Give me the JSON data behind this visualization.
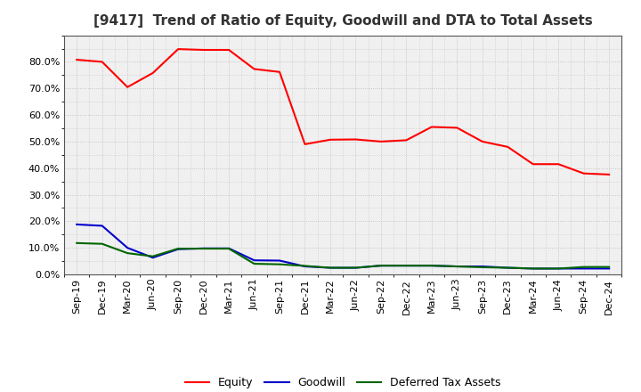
{
  "title": "[9417]  Trend of Ratio of Equity, Goodwill and DTA to Total Assets",
  "x_labels": [
    "Sep-19",
    "Dec-19",
    "Mar-20",
    "Jun-20",
    "Sep-20",
    "Dec-20",
    "Mar-21",
    "Jun-21",
    "Sep-21",
    "Dec-21",
    "Mar-22",
    "Jun-22",
    "Sep-22",
    "Dec-22",
    "Mar-23",
    "Jun-23",
    "Sep-23",
    "Dec-23",
    "Mar-24",
    "Jun-24",
    "Sep-24",
    "Dec-24"
  ],
  "equity": [
    0.808,
    0.8,
    0.705,
    0.758,
    0.848,
    0.845,
    0.845,
    0.773,
    0.762,
    0.49,
    0.507,
    0.508,
    0.5,
    0.505,
    0.555,
    0.552,
    0.5,
    0.48,
    0.415,
    0.415,
    0.38,
    0.376
  ],
  "goodwill": [
    0.188,
    0.183,
    0.1,
    0.063,
    0.095,
    0.098,
    0.098,
    0.053,
    0.052,
    0.03,
    0.025,
    0.025,
    0.033,
    0.033,
    0.033,
    0.03,
    0.03,
    0.025,
    0.022,
    0.022,
    0.022,
    0.022
  ],
  "dta": [
    0.118,
    0.115,
    0.08,
    0.068,
    0.097,
    0.097,
    0.097,
    0.04,
    0.038,
    0.032,
    0.025,
    0.025,
    0.033,
    0.033,
    0.033,
    0.03,
    0.027,
    0.025,
    0.022,
    0.022,
    0.028,
    0.028
  ],
  "equity_color": "#FF0000",
  "goodwill_color": "#0000CC",
  "dta_color": "#006600",
  "ylim": [
    0.0,
    0.9
  ],
  "yticks": [
    0.0,
    0.1,
    0.2,
    0.3,
    0.4,
    0.5,
    0.6,
    0.7,
    0.8
  ],
  "background_color": "#FFFFFF",
  "plot_bg_color": "#F0F0F0",
  "grid_color": "#BBBBBB",
  "title_fontsize": 11,
  "legend_fontsize": 9,
  "tick_fontsize": 8
}
